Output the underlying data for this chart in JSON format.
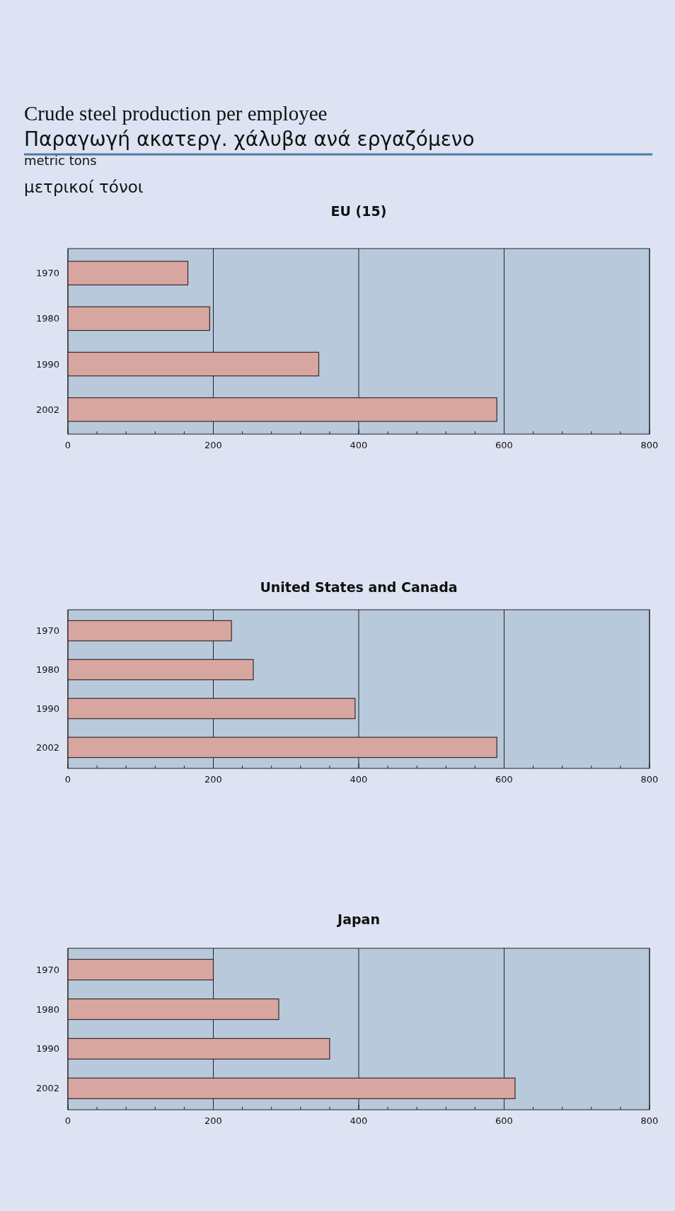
{
  "chart_data": [
    {
      "type": "bar",
      "orientation": "horizontal",
      "title": "EU (15)",
      "annotations": [
        "Crude steel production per employee",
        "Παραγωγή ακατεργ. χάλυβα ανά εργαζόμενο",
        "metric tons",
        "μετρικοί τόνοι"
      ],
      "categories": [
        "1970",
        "1980",
        "1990",
        "2002"
      ],
      "values": [
        165,
        195,
        345,
        590
      ],
      "color": "#d8a6a0",
      "xlim": [
        0,
        800
      ],
      "xticks": [
        0,
        {
          "value": 40,
          "label": null
        },
        {
          "value": 80,
          "label": null
        },
        {
          "value": 120,
          "label": null
        },
        {
          "value": 160,
          "label": null
        },
        200,
        {
          "value": 240,
          "label": null
        },
        {
          "value": 280,
          "label": null
        },
        {
          "value": 320,
          "label": null
        },
        {
          "value": 360,
          "label": null
        },
        400,
        {
          "value": 440,
          "label": null
        },
        {
          "value": 480,
          "label": null
        },
        {
          "value": 520,
          "label": null
        },
        {
          "value": 560,
          "label": null
        },
        600,
        {
          "value": 640,
          "label": null
        },
        {
          "value": 680,
          "label": null
        },
        {
          "value": 720,
          "label": null
        },
        {
          "value": 760,
          "label": null
        },
        800
      ],
      "grid": "x"
    },
    {
      "type": "bar",
      "orientation": "horizontal",
      "title": "United States and Canada",
      "categories": [
        "1970",
        "1980",
        "1990",
        "2002"
      ],
      "values": [
        225,
        255,
        395,
        590
      ],
      "color": "#d8a6a0",
      "xlim": [
        0,
        800
      ],
      "xticks": [
        0,
        {
          "value": 40,
          "label": null
        },
        {
          "value": 80,
          "label": null
        },
        {
          "value": 120,
          "label": null
        },
        {
          "value": 160,
          "label": null
        },
        200,
        {
          "value": 240,
          "label": null
        },
        {
          "value": 280,
          "label": null
        },
        {
          "value": 320,
          "label": null
        },
        {
          "value": 360,
          "label": null
        },
        400,
        {
          "value": 440,
          "label": null
        },
        {
          "value": 480,
          "label": null
        },
        {
          "value": 520,
          "label": null
        },
        {
          "value": 560,
          "label": null
        },
        600,
        {
          "value": 640,
          "label": null
        },
        {
          "value": 680,
          "label": null
        },
        {
          "value": 720,
          "label": null
        },
        {
          "value": 760,
          "label": null
        },
        800
      ],
      "grid": "x"
    },
    {
      "type": "bar",
      "orientation": "horizontal",
      "title": "Japan",
      "categories": [
        "1970",
        "1980",
        "1990",
        "2002"
      ],
      "values": [
        200,
        290,
        360,
        615
      ],
      "color": "#d8a6a0",
      "xlim": [
        0,
        800
      ],
      "xticks": [
        0,
        {
          "value": 40,
          "label": null
        },
        {
          "value": 80,
          "label": null
        },
        {
          "value": 120,
          "label": null
        },
        {
          "value": 160,
          "label": null
        },
        200,
        {
          "value": 240,
          "label": null
        },
        {
          "value": 280,
          "label": null
        },
        {
          "value": 320,
          "label": null
        },
        {
          "value": 360,
          "label": null
        },
        400,
        {
          "value": 440,
          "label": null
        },
        {
          "value": 480,
          "label": null
        },
        {
          "value": 520,
          "label": null
        },
        {
          "value": 560,
          "label": null
        },
        600,
        {
          "value": 640,
          "label": null
        },
        {
          "value": 680,
          "label": null
        },
        {
          "value": 720,
          "label": null
        },
        {
          "value": 760,
          "label": null
        },
        800
      ],
      "grid": "x"
    }
  ]
}
